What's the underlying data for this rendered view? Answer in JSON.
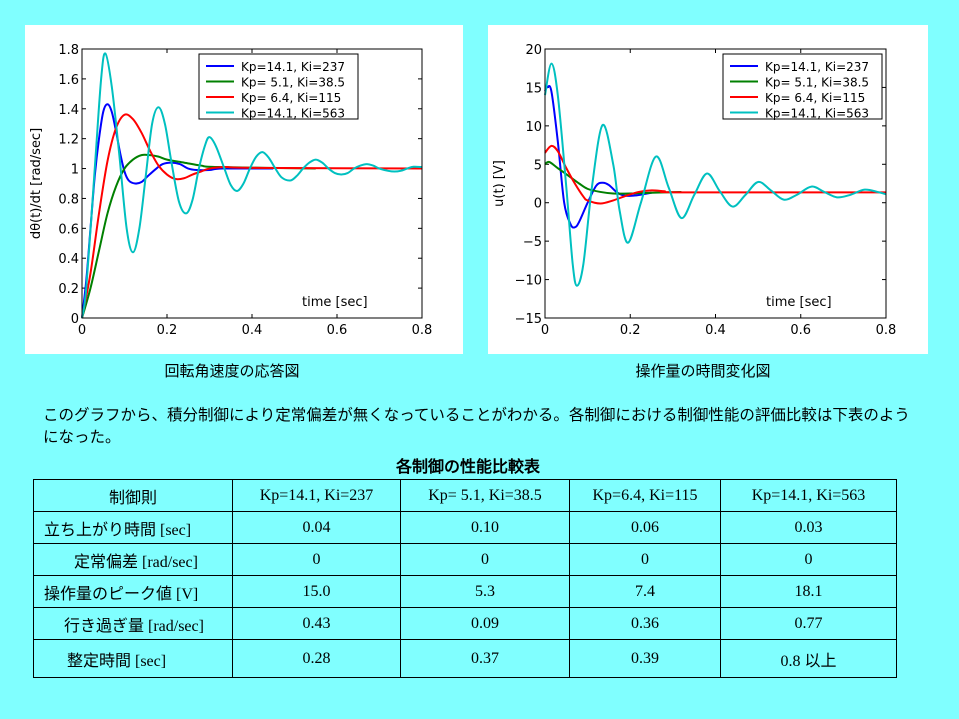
{
  "captions": {
    "left": "回転角速度の応答図",
    "right": "操作量の時間変化図"
  },
  "paragraph": "このグラフから、積分制御により定常偏差が無くなっていることがわかる。各制御における制御性能の評価比較は下表のようになった。",
  "table": {
    "title": "各制御の性能比較表",
    "header": [
      "制御則",
      "Kp=14.1, Ki=237",
      "Kp= 5.1, Ki=38.5",
      "Kp=6.4, Ki=115",
      "Kp=14.1, Ki=563"
    ],
    "rows": [
      [
        "立ち上がり時間 [sec]",
        "0.04",
        "0.10",
        "0.06",
        "0.03"
      ],
      [
        "定常偏差 [rad/sec]",
        "0",
        "0",
        "0",
        "0"
      ],
      [
        "操作量のピーク値 [V]",
        "15.0",
        "5.3",
        "7.4",
        "18.1"
      ],
      [
        "行き過ぎ量 [rad/sec]",
        "0.43",
        "0.09",
        "0.36",
        "0.77"
      ],
      [
        "整定時間 [sec]",
        "0.28",
        "0.37",
        "0.39",
        "0.8 以上"
      ]
    ]
  },
  "chart_data": [
    {
      "type": "line",
      "ylabel": "dθ(t)/dt [rad/sec]",
      "xlabel": "time [sec]",
      "xlim": [
        0,
        0.8
      ],
      "ylim": [
        0,
        1.8
      ],
      "xticks": [
        "0",
        "0.2",
        "0.4",
        "0.6",
        "0.8"
      ],
      "yticks": [
        "0",
        "0.2",
        "0.4",
        "0.6",
        "0.8",
        "1",
        "1.2",
        "1.4",
        "1.6",
        "1.8"
      ],
      "legend": "top-right",
      "grid": false,
      "series": [
        {
          "name": "Kp=14.1, Ki=237",
          "color": "#0000ff",
          "points": [
            [
              0,
              0
            ],
            [
              0.01,
              0.25
            ],
            [
              0.02,
              0.6
            ],
            [
              0.03,
              0.95
            ],
            [
              0.04,
              1.2
            ],
            [
              0.05,
              1.38
            ],
            [
              0.06,
              1.43
            ],
            [
              0.07,
              1.38
            ],
            [
              0.08,
              1.25
            ],
            [
              0.09,
              1.1
            ],
            [
              0.1,
              0.98
            ],
            [
              0.11,
              0.92
            ],
            [
              0.125,
              0.9
            ],
            [
              0.14,
              0.91
            ],
            [
              0.155,
              0.95
            ],
            [
              0.175,
              1.0
            ],
            [
              0.19,
              1.03
            ],
            [
              0.21,
              1.04
            ],
            [
              0.23,
              1.03
            ],
            [
              0.25,
              1.0
            ],
            [
              0.27,
              0.99
            ],
            [
              0.3,
              0.99
            ],
            [
              0.33,
              1.0
            ],
            [
              0.45,
              1.0
            ]
          ]
        },
        {
          "name": "Kp=  5.1, Ki=38.5",
          "color": "#008000",
          "points": [
            [
              0,
              0
            ],
            [
              0.02,
              0.2
            ],
            [
              0.04,
              0.45
            ],
            [
              0.06,
              0.7
            ],
            [
              0.08,
              0.88
            ],
            [
              0.1,
              1.0
            ],
            [
              0.12,
              1.06
            ],
            [
              0.14,
              1.09
            ],
            [
              0.16,
              1.09
            ],
            [
              0.18,
              1.08
            ],
            [
              0.2,
              1.06
            ],
            [
              0.24,
              1.04
            ],
            [
              0.28,
              1.02
            ],
            [
              0.32,
              1.01
            ],
            [
              0.55,
              1.0
            ]
          ]
        },
        {
          "name": "Kp=  6.4, Ki=115",
          "color": "#ff0000",
          "points": [
            [
              0,
              0
            ],
            [
              0.02,
              0.3
            ],
            [
              0.04,
              0.7
            ],
            [
              0.06,
              1.05
            ],
            [
              0.08,
              1.27
            ],
            [
              0.1,
              1.36
            ],
            [
              0.12,
              1.33
            ],
            [
              0.14,
              1.24
            ],
            [
              0.16,
              1.12
            ],
            [
              0.18,
              1.02
            ],
            [
              0.2,
              0.96
            ],
            [
              0.22,
              0.93
            ],
            [
              0.24,
              0.935
            ],
            [
              0.26,
              0.96
            ],
            [
              0.28,
              0.98
            ],
            [
              0.3,
              1.0
            ],
            [
              0.34,
              1.01
            ],
            [
              0.4,
              1.005
            ],
            [
              0.8,
              1.0
            ]
          ]
        },
        {
          "name": "Kp=14.1, Ki=563",
          "color": "#00c0c0",
          "points": [
            [
              0,
              0
            ],
            [
              0.01,
              0.2
            ],
            [
              0.03,
              1.0
            ],
            [
              0.045,
              1.6
            ],
            [
              0.055,
              1.77
            ],
            [
              0.07,
              1.55
            ],
            [
              0.0875,
              1.1
            ],
            [
              0.105,
              0.6
            ],
            [
              0.12,
              0.44
            ],
            [
              0.135,
              0.6
            ],
            [
              0.15,
              0.95
            ],
            [
              0.165,
              1.3
            ],
            [
              0.18,
              1.41
            ],
            [
              0.195,
              1.3
            ],
            [
              0.21,
              1.05
            ],
            [
              0.228,
              0.78
            ],
            [
              0.245,
              0.7
            ],
            [
              0.26,
              0.79
            ],
            [
              0.275,
              1.0
            ],
            [
              0.29,
              1.16
            ],
            [
              0.3,
              1.21
            ],
            [
              0.315,
              1.15
            ],
            [
              0.335,
              1.0
            ],
            [
              0.35,
              0.89
            ],
            [
              0.365,
              0.85
            ],
            [
              0.38,
              0.9
            ],
            [
              0.395,
              1.0
            ],
            [
              0.41,
              1.08
            ],
            [
              0.425,
              1.11
            ],
            [
              0.44,
              1.07
            ],
            [
              0.455,
              1.0
            ],
            [
              0.47,
              0.94
            ],
            [
              0.49,
              0.92
            ],
            [
              0.505,
              0.95
            ],
            [
              0.52,
              1.0
            ],
            [
              0.535,
              1.04
            ],
            [
              0.55,
              1.06
            ],
            [
              0.565,
              1.04
            ],
            [
              0.58,
              1.0
            ],
            [
              0.595,
              0.97
            ],
            [
              0.61,
              0.96
            ],
            [
              0.625,
              0.97
            ],
            [
              0.64,
              1.0
            ],
            [
              0.655,
              1.02
            ],
            [
              0.67,
              1.03
            ],
            [
              0.685,
              1.02
            ],
            [
              0.7,
              1.0
            ],
            [
              0.72,
              0.985
            ],
            [
              0.735,
              0.98
            ],
            [
              0.75,
              0.985
            ],
            [
              0.765,
              1.0
            ],
            [
              0.78,
              1.012
            ],
            [
              0.8,
              1.01
            ]
          ]
        }
      ]
    },
    {
      "type": "line",
      "ylabel": "u(t) [V]",
      "xlabel": "time [sec]",
      "xlim": [
        0,
        0.8
      ],
      "ylim": [
        -15,
        20
      ],
      "xticks": [
        "0",
        "0.2",
        "0.4",
        "0.6",
        "0.8"
      ],
      "yticks": [
        "-15",
        "-10",
        "-5",
        "0",
        "5",
        "10",
        "15",
        "20"
      ],
      "legend": "top-right",
      "grid": false,
      "series": [
        {
          "name": "Kp=14.1, Ki=237",
          "color": "#0000ff",
          "points": [
            [
              0,
              14.5
            ],
            [
              0.005,
              15
            ],
            [
              0.015,
              14.5
            ],
            [
              0.03,
              8
            ],
            [
              0.045,
              0
            ],
            [
              0.06,
              -2.8
            ],
            [
              0.07,
              -3.2
            ],
            [
              0.08,
              -2.5
            ],
            [
              0.1,
              0
            ],
            [
              0.12,
              2.2
            ],
            [
              0.135,
              2.6
            ],
            [
              0.15,
              2.3
            ],
            [
              0.17,
              1.3
            ],
            [
              0.19,
              0.9
            ],
            [
              0.22,
              1.0
            ],
            [
              0.25,
              1.3
            ]
          ]
        },
        {
          "name": "Kp=  5.1, Ki=38.5",
          "color": "#008000",
          "points": [
            [
              0,
              5
            ],
            [
              0.01,
              5.3
            ],
            [
              0.03,
              4.5
            ],
            [
              0.06,
              3.3
            ],
            [
              0.08,
              2.5
            ],
            [
              0.1,
              1.8
            ],
            [
              0.13,
              1.4
            ],
            [
              0.16,
              1.2
            ],
            [
              0.2,
              1.2
            ],
            [
              0.25,
              1.3
            ],
            [
              0.32,
              1.4
            ]
          ]
        },
        {
          "name": "Kp=  6.4, Ki=115",
          "color": "#ff0000",
          "points": [
            [
              0,
              6.5
            ],
            [
              0.015,
              7.4
            ],
            [
              0.03,
              6.7
            ],
            [
              0.05,
              4.5
            ],
            [
              0.07,
              2.5
            ],
            [
              0.09,
              0.8
            ],
            [
              0.1,
              0.3
            ],
            [
              0.13,
              -0.1
            ],
            [
              0.16,
              0.3
            ],
            [
              0.19,
              0.9
            ],
            [
              0.22,
              1.4
            ],
            [
              0.25,
              1.6
            ],
            [
              0.28,
              1.5
            ],
            [
              0.32,
              1.35
            ],
            [
              0.8,
              1.35
            ]
          ]
        },
        {
          "name": "Kp=14.1, Ki=563",
          "color": "#00c0c0",
          "points": [
            [
              0,
              14
            ],
            [
              0.015,
              18.1
            ],
            [
              0.03,
              14
            ],
            [
              0.05,
              2
            ],
            [
              0.065,
              -8
            ],
            [
              0.075,
              -10.8
            ],
            [
              0.09,
              -8
            ],
            [
              0.11,
              2
            ],
            [
              0.135,
              10.1
            ],
            [
              0.16,
              5
            ],
            [
              0.175,
              -1
            ],
            [
              0.195,
              -5.2
            ],
            [
              0.225,
              0
            ],
            [
              0.26,
              6
            ],
            [
              0.29,
              2
            ],
            [
              0.32,
              -2
            ],
            [
              0.35,
              1
            ],
            [
              0.38,
              3.8
            ],
            [
              0.41,
              1.5
            ],
            [
              0.44,
              -0.5
            ],
            [
              0.47,
              1
            ],
            [
              0.5,
              2.7
            ],
            [
              0.53,
              1.6
            ],
            [
              0.56,
              0.4
            ],
            [
              0.59,
              1
            ],
            [
              0.625,
              2.1
            ],
            [
              0.655,
              1.4
            ],
            [
              0.685,
              0.7
            ],
            [
              0.715,
              1
            ],
            [
              0.75,
              1.7
            ],
            [
              0.78,
              1.4
            ],
            [
              0.8,
              1.1
            ]
          ]
        }
      ]
    }
  ]
}
